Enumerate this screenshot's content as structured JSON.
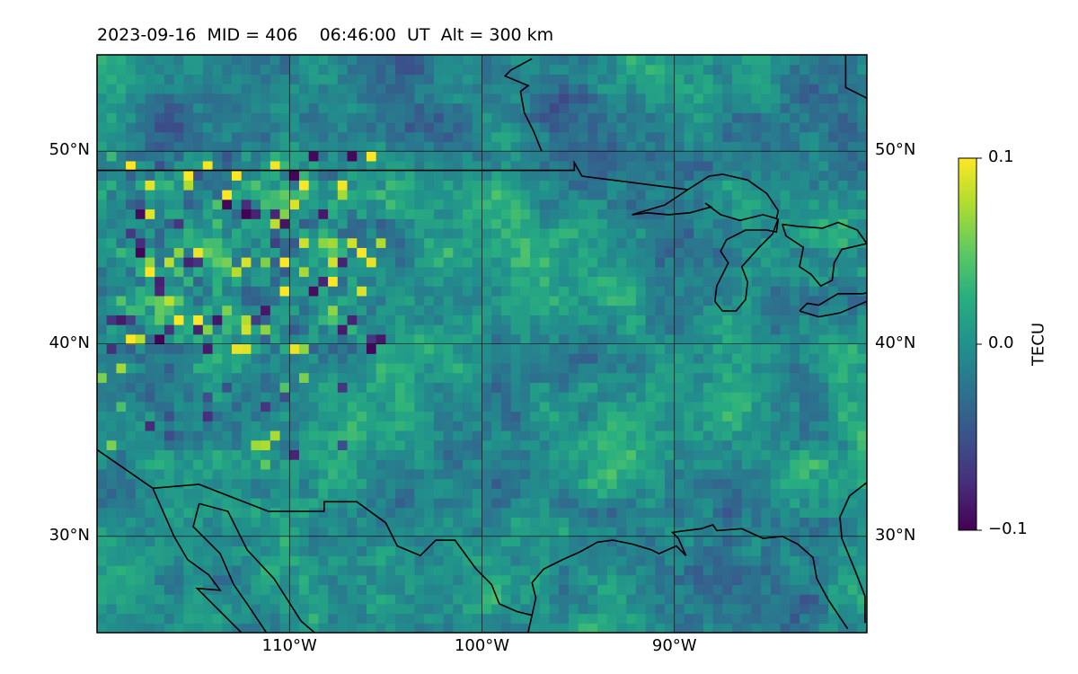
{
  "title": {
    "date": "2023-09-16",
    "mid": "MID = 406",
    "time": "06:46:00  UT",
    "alt": "Alt = 300 km"
  },
  "map": {
    "projection": "PlateCarree",
    "lon_range": [
      -120,
      -80
    ],
    "lat_range": [
      25,
      55
    ],
    "grid": true,
    "x_ticks": [
      {
        "lon": -110,
        "label": "110°W"
      },
      {
        "lon": -100,
        "label": "100°W"
      },
      {
        "lon": -90,
        "label": "90°W"
      }
    ],
    "y_ticks": [
      {
        "lat": 30,
        "label": "30°N"
      },
      {
        "lat": 40,
        "label": "40°N"
      },
      {
        "lat": 50,
        "label": "50°N"
      }
    ],
    "coastline_color": "#000000"
  },
  "colorbar": {
    "label": "TECU",
    "vmin": -0.1,
    "vmax": 0.1,
    "cmap": "viridis",
    "ticks": [
      {
        "value": 0.1,
        "label": "0.1"
      },
      {
        "value": 0.0,
        "label": "0.0"
      },
      {
        "value": -0.1,
        "label": "−0.1"
      }
    ]
  },
  "chart_data": {
    "type": "heatmap",
    "variable": "TEC perturbation",
    "units": "TECU",
    "background_mean": 0.0,
    "noisy_region": {
      "lon_range": [
        -120,
        -105
      ],
      "lat_range": [
        39,
        50
      ]
    }
  }
}
